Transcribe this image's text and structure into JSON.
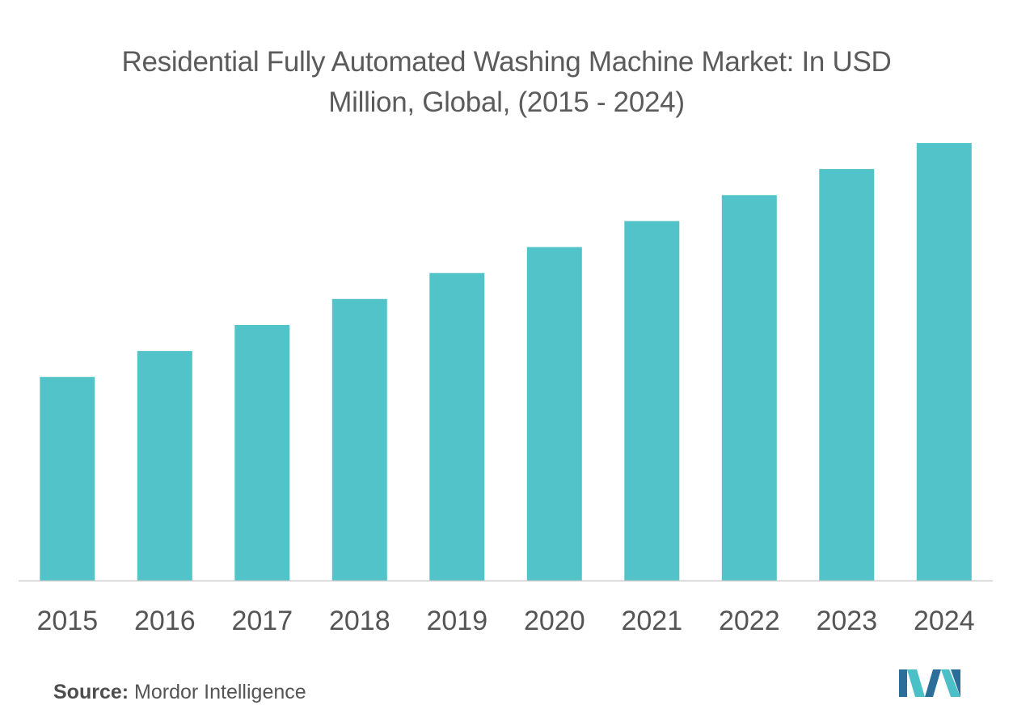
{
  "chart_data": {
    "type": "bar",
    "title": "Residential Fully Automated Washing Machine Market: In USD Million, Global, (2015 - 2024)",
    "categories": [
      "2015",
      "2016",
      "2017",
      "2018",
      "2019",
      "2020",
      "2021",
      "2022",
      "2023",
      "2024"
    ],
    "values": [
      4.7,
      5.3,
      5.9,
      6.5,
      7.1,
      7.7,
      8.3,
      8.9,
      9.5,
      10.1
    ],
    "xlabel": "",
    "ylabel": "",
    "ylim": [
      0,
      10.1
    ],
    "grid": false,
    "legend": "none",
    "bar_color": "#52c3c8",
    "axis_color": "#cccccc"
  },
  "footer": {
    "source_key": "Source:",
    "source_value": " Mordor Intelligence"
  },
  "logo": {
    "icon": "mordor-intelligence-logo-icon",
    "colors": [
      "#2a6e99",
      "#4cc0c7"
    ]
  }
}
